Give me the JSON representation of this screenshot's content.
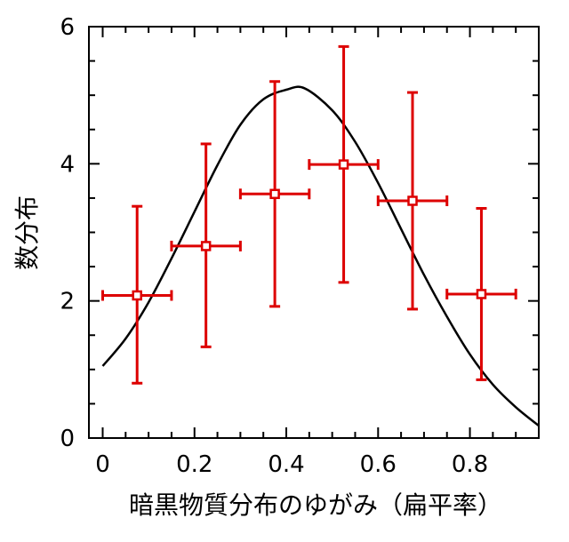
{
  "chart_data": {
    "type": "scatter",
    "xlabel": "暗黒物質分布のゆがみ（扁平率）",
    "ylabel": "数分布",
    "xlim": [
      -0.03,
      0.95
    ],
    "ylim": [
      0,
      6
    ],
    "x_ticks": [
      "0",
      "0.2",
      "0.4",
      "0.6",
      "0.8"
    ],
    "x_tick_values": [
      0,
      0.2,
      0.4,
      0.6,
      0.8
    ],
    "y_ticks": [
      "0",
      "2",
      "4",
      "6"
    ],
    "y_tick_values": [
      0,
      2,
      4,
      6
    ],
    "grid": false,
    "series": [
      {
        "kind": "points_with_errorbars",
        "color": "#dd0000",
        "points": [
          {
            "x": 0.075,
            "y": 2.08,
            "xerr": 0.075,
            "yerr_low": 1.28,
            "yerr_high": 1.3
          },
          {
            "x": 0.225,
            "y": 2.8,
            "xerr": 0.075,
            "yerr_low": 1.47,
            "yerr_high": 1.49
          },
          {
            "x": 0.375,
            "y": 3.56,
            "xerr": 0.075,
            "yerr_low": 1.64,
            "yerr_high": 1.64
          },
          {
            "x": 0.525,
            "y": 3.99,
            "xerr": 0.075,
            "yerr_low": 1.72,
            "yerr_high": 1.72
          },
          {
            "x": 0.675,
            "y": 3.46,
            "xerr": 0.075,
            "yerr_low": 1.58,
            "yerr_high": 1.58
          },
          {
            "x": 0.825,
            "y": 2.1,
            "xerr": 0.075,
            "yerr_low": 1.25,
            "yerr_high": 1.25
          }
        ]
      },
      {
        "kind": "curve",
        "color": "#000000",
        "x": [
          0.0,
          0.05,
          0.1,
          0.15,
          0.2,
          0.25,
          0.3,
          0.35,
          0.4,
          0.44,
          0.5,
          0.55,
          0.6,
          0.65,
          0.7,
          0.75,
          0.8,
          0.85,
          0.9,
          0.95
        ],
        "y": [
          1.05,
          1.45,
          1.98,
          2.62,
          3.3,
          3.98,
          4.57,
          4.94,
          5.08,
          5.1,
          4.78,
          4.32,
          3.72,
          3.05,
          2.38,
          1.77,
          1.22,
          0.78,
          0.45,
          0.18
        ]
      }
    ]
  }
}
